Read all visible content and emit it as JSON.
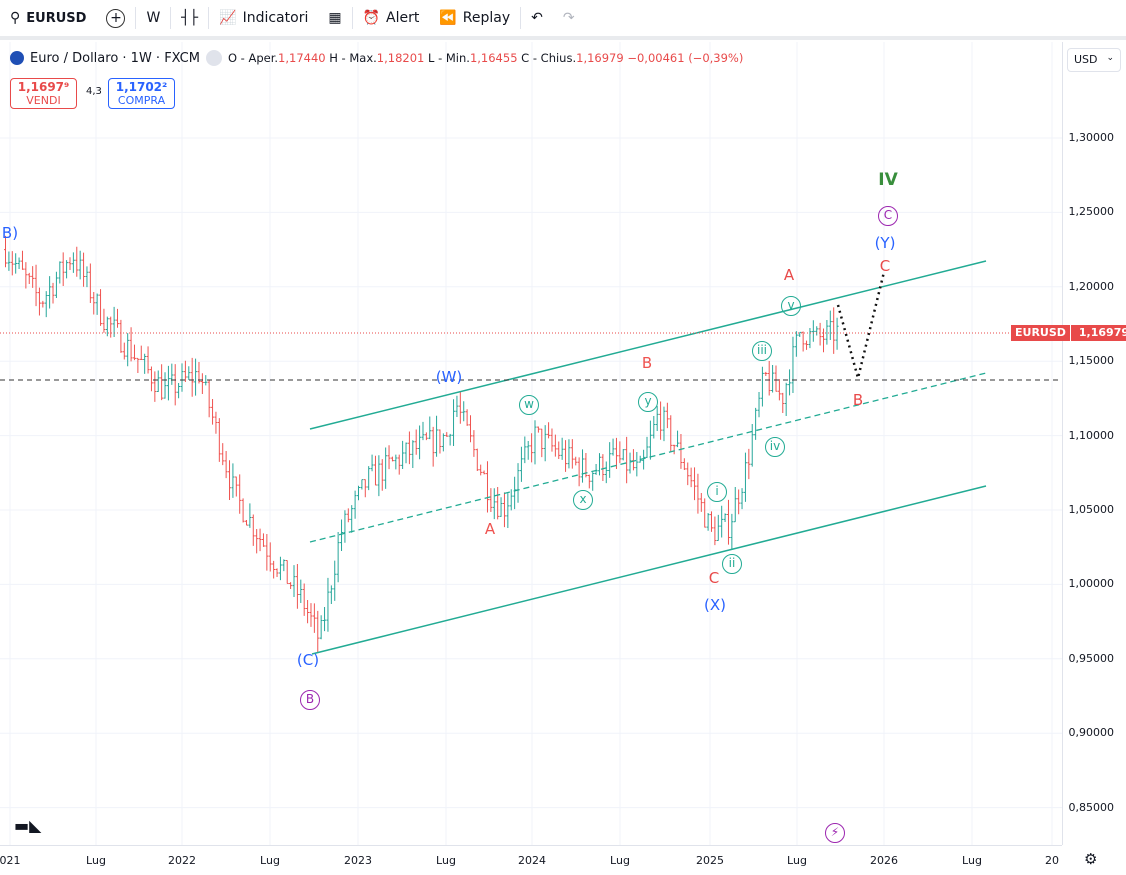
{
  "toolbar": {
    "symbol": "EURUSD",
    "interval": "W",
    "indicators": "Indicatori",
    "alert": "Alert",
    "replay": "Replay"
  },
  "legend": {
    "title": "Euro / Dollaro · 1W · FXCM",
    "open_label": "O - Aper.",
    "open": "1,17440",
    "high_label": "H - Max.",
    "high": "1,18201",
    "low_label": "L - Min.",
    "low": "1,16455",
    "close_label": "C - Chius.",
    "close": "1,16979",
    "change": "−0,00461 (−0,39%)"
  },
  "quote": {
    "sell_price": "1,1697⁹",
    "sell_label": "VENDI",
    "spread": "4,3",
    "buy_price": "1,1702²",
    "buy_label": "COMPRA"
  },
  "scale": {
    "currency": "USD",
    "ticks": [
      "1,30000",
      "1,25000",
      "1,20000",
      "1,15000",
      "1,10000",
      "1,05000",
      "1,00000",
      "0,95000",
      "0,90000",
      "0,85000"
    ],
    "last_symbol": "EURUSD",
    "last_price": "1,16979"
  },
  "time_axis": [
    "021",
    "Lug",
    "2022",
    "Lug",
    "2023",
    "Lug",
    "2024",
    "Lug",
    "2025",
    "Lug",
    "2026",
    "Lug",
    "20"
  ],
  "wave_labels": {
    "B_top": "B)",
    "W": "(W)",
    "C_paren": "(C)",
    "B_circ": "B",
    "A1": "A",
    "B1": "B",
    "X": "(X)",
    "C1": "C",
    "w": "w",
    "x": "x",
    "y": "y",
    "i": "i",
    "ii": "ii",
    "iii": "iii",
    "iv": "iv",
    "v": "v",
    "A2": "A",
    "B2": "B",
    "C2": "C",
    "Y": "(Y)",
    "C_circ": "C",
    "IV": "IV"
  },
  "colors": {
    "up": "#26a69a",
    "down": "#ef5350",
    "channel": "#22ab94",
    "blue": "#2962ff",
    "red": "#e84a4a",
    "purple": "#9c27b0",
    "green": "#388e3c"
  },
  "price_path": [
    [
      2021.0,
      1.225
    ],
    [
      2021.2,
      1.19
    ],
    [
      2021.38,
      1.222
    ],
    [
      2021.55,
      1.18
    ],
    [
      2021.9,
      1.13
    ],
    [
      2022.1,
      1.142
    ],
    [
      2022.3,
      1.06
    ],
    [
      2022.5,
      1.02
    ],
    [
      2022.68,
      0.99
    ],
    [
      2022.78,
      0.962
    ],
    [
      2022.9,
      1.035
    ],
    [
      2023.05,
      1.07
    ],
    [
      2023.3,
      1.09
    ],
    [
      2023.5,
      1.1
    ],
    [
      2023.55,
      1.122
    ],
    [
      2023.75,
      1.06
    ],
    [
      2023.82,
      1.05
    ],
    [
      2024.0,
      1.1
    ],
    [
      2024.3,
      1.075
    ],
    [
      2024.45,
      1.085
    ],
    [
      2024.6,
      1.075
    ],
    [
      2024.7,
      1.115
    ],
    [
      2024.85,
      1.08
    ],
    [
      2025.0,
      1.035
    ],
    [
      2025.1,
      1.04
    ],
    [
      2025.2,
      1.08
    ],
    [
      2025.3,
      1.14
    ],
    [
      2025.4,
      1.125
    ],
    [
      2025.5,
      1.17
    ],
    [
      2025.6,
      1.165
    ],
    [
      2025.72,
      1.17
    ]
  ]
}
